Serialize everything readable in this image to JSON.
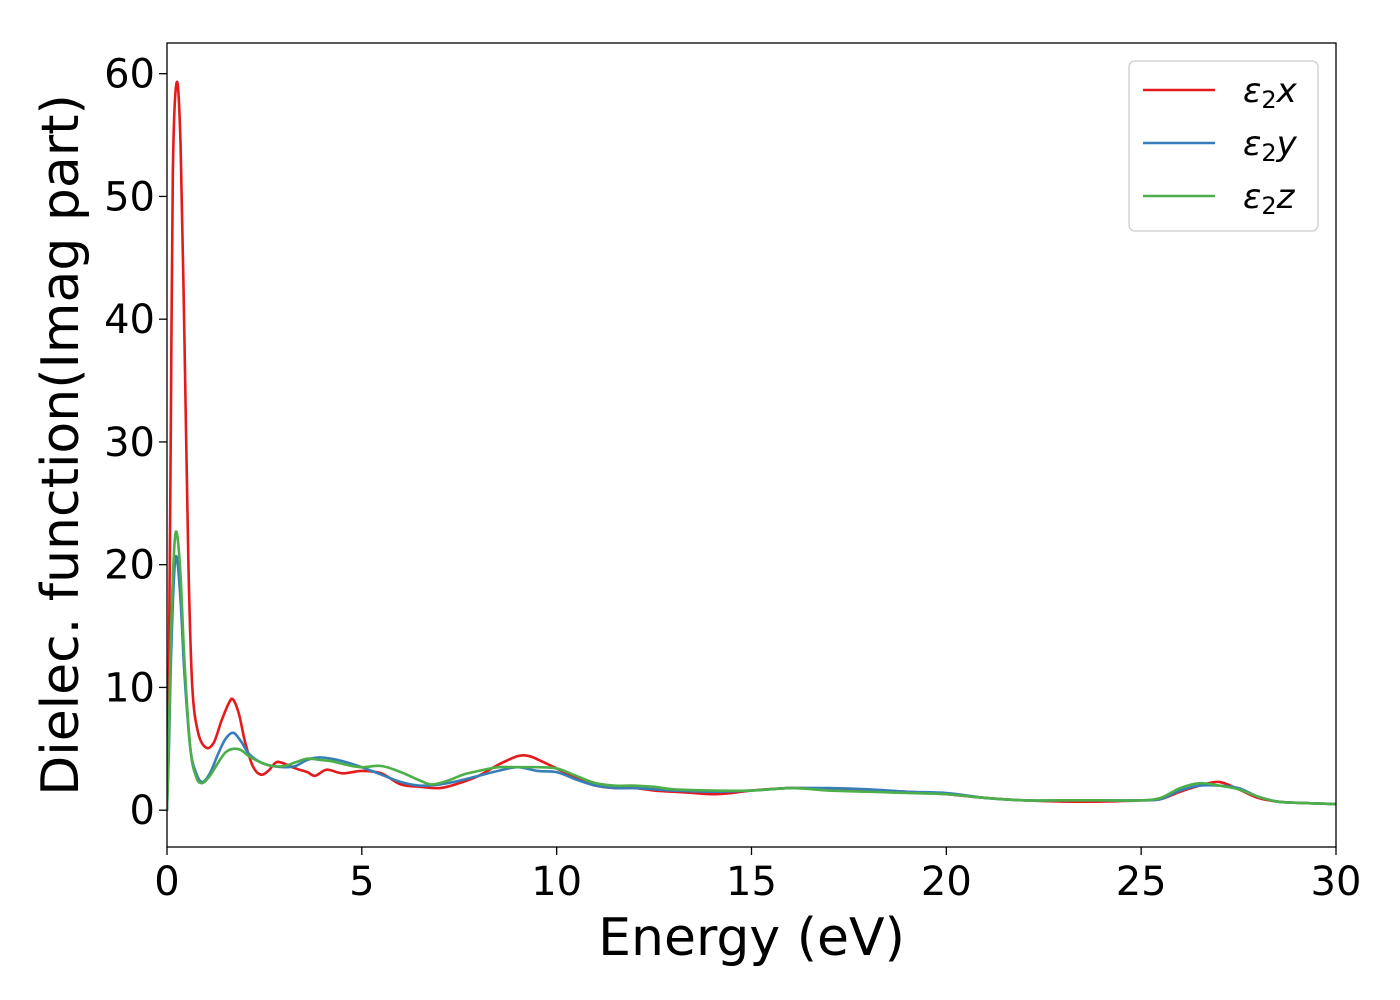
{
  "chart_data": {
    "type": "line",
    "title": "",
    "xlabel": "Energy (eV)",
    "ylabel": "Dielec. function(Imag part)",
    "xlim": [
      0,
      30
    ],
    "ylim": [
      -3,
      62.5
    ],
    "xticks": [
      0,
      5,
      10,
      15,
      20,
      25,
      30
    ],
    "yticks": [
      0,
      10,
      20,
      30,
      40,
      50,
      60
    ],
    "grid": false,
    "legend_position": "top-right",
    "series": [
      {
        "name": "ε2x",
        "legend_main": "ε",
        "legend_sub": "2",
        "legend_tail": "x",
        "color": "#e41a1c",
        "points": [
          [
            0,
            0
          ],
          [
            0.05,
            12
          ],
          [
            0.1,
            32
          ],
          [
            0.15,
            52
          ],
          [
            0.25,
            59.3
          ],
          [
            0.35,
            54
          ],
          [
            0.45,
            38
          ],
          [
            0.55,
            20
          ],
          [
            0.65,
            10
          ],
          [
            0.8,
            6.3
          ],
          [
            1.0,
            5.1
          ],
          [
            1.2,
            5.5
          ],
          [
            1.4,
            7.3
          ],
          [
            1.6,
            8.8
          ],
          [
            1.7,
            9.0
          ],
          [
            1.85,
            7.8
          ],
          [
            2.0,
            5.6
          ],
          [
            2.2,
            3.6
          ],
          [
            2.4,
            2.9
          ],
          [
            2.6,
            3.2
          ],
          [
            2.8,
            3.9
          ],
          [
            3.0,
            3.8
          ],
          [
            3.3,
            3.4
          ],
          [
            3.6,
            3.1
          ],
          [
            3.8,
            2.8
          ],
          [
            4.1,
            3.3
          ],
          [
            4.5,
            3.0
          ],
          [
            5.0,
            3.2
          ],
          [
            5.5,
            3.0
          ],
          [
            6.0,
            2.1
          ],
          [
            6.5,
            1.9
          ],
          [
            7.0,
            1.8
          ],
          [
            7.5,
            2.2
          ],
          [
            8.0,
            2.8
          ],
          [
            8.5,
            3.7
          ],
          [
            9.0,
            4.4
          ],
          [
            9.3,
            4.4
          ],
          [
            9.6,
            4.0
          ],
          [
            10.0,
            3.4
          ],
          [
            10.5,
            2.6
          ],
          [
            11.0,
            2.0
          ],
          [
            11.5,
            1.8
          ],
          [
            12.0,
            1.8
          ],
          [
            12.5,
            1.6
          ],
          [
            13.0,
            1.5
          ],
          [
            13.5,
            1.4
          ],
          [
            14.0,
            1.3
          ],
          [
            14.5,
            1.4
          ],
          [
            15.0,
            1.6
          ],
          [
            16.0,
            1.8
          ],
          [
            17.0,
            1.7
          ],
          [
            18.0,
            1.6
          ],
          [
            19.0,
            1.5
          ],
          [
            20.0,
            1.3
          ],
          [
            21.0,
            1.0
          ],
          [
            22.0,
            0.8
          ],
          [
            23.0,
            0.7
          ],
          [
            24.0,
            0.7
          ],
          [
            25.0,
            0.8
          ],
          [
            25.5,
            0.9
          ],
          [
            26.0,
            1.5
          ],
          [
            26.5,
            2.0
          ],
          [
            27.0,
            2.3
          ],
          [
            27.5,
            1.7
          ],
          [
            28.0,
            1.0
          ],
          [
            28.5,
            0.7
          ],
          [
            29.0,
            0.6
          ],
          [
            30.0,
            0.5
          ]
        ]
      },
      {
        "name": "ε2y",
        "legend_main": "ε",
        "legend_sub": "2",
        "legend_tail": "y",
        "color": "#377eb8",
        "points": [
          [
            0,
            0
          ],
          [
            0.05,
            5
          ],
          [
            0.1,
            12
          ],
          [
            0.18,
            19
          ],
          [
            0.25,
            20.6
          ],
          [
            0.35,
            17
          ],
          [
            0.45,
            11
          ],
          [
            0.6,
            5
          ],
          [
            0.75,
            3.0
          ],
          [
            0.9,
            2.3
          ],
          [
            1.1,
            3.0
          ],
          [
            1.3,
            4.5
          ],
          [
            1.5,
            5.8
          ],
          [
            1.7,
            6.3
          ],
          [
            1.9,
            5.6
          ],
          [
            2.1,
            4.6
          ],
          [
            2.4,
            3.9
          ],
          [
            2.7,
            3.6
          ],
          [
            3.0,
            3.5
          ],
          [
            3.3,
            3.6
          ],
          [
            3.6,
            4.1
          ],
          [
            3.9,
            4.3
          ],
          [
            4.2,
            4.2
          ],
          [
            4.5,
            4.0
          ],
          [
            5.0,
            3.5
          ],
          [
            5.5,
            2.9
          ],
          [
            6.0,
            2.3
          ],
          [
            6.5,
            2.0
          ],
          [
            7.0,
            2.1
          ],
          [
            7.5,
            2.4
          ],
          [
            8.0,
            2.8
          ],
          [
            8.5,
            3.2
          ],
          [
            9.0,
            3.5
          ],
          [
            9.5,
            3.2
          ],
          [
            10.0,
            3.1
          ],
          [
            10.5,
            2.5
          ],
          [
            11.0,
            2.0
          ],
          [
            11.5,
            1.8
          ],
          [
            12.0,
            1.8
          ],
          [
            12.5,
            1.7
          ],
          [
            13.0,
            1.6
          ],
          [
            14.0,
            1.5
          ],
          [
            15.0,
            1.6
          ],
          [
            16.0,
            1.8
          ],
          [
            17.0,
            1.8
          ],
          [
            18.0,
            1.7
          ],
          [
            19.0,
            1.5
          ],
          [
            20.0,
            1.4
          ],
          [
            21.0,
            1.0
          ],
          [
            22.0,
            0.8
          ],
          [
            23.0,
            0.8
          ],
          [
            24.0,
            0.8
          ],
          [
            25.0,
            0.8
          ],
          [
            25.5,
            0.9
          ],
          [
            26.0,
            1.6
          ],
          [
            26.5,
            2.0
          ],
          [
            27.0,
            2.0
          ],
          [
            27.5,
            1.8
          ],
          [
            28.0,
            1.1
          ],
          [
            28.5,
            0.7
          ],
          [
            29.0,
            0.6
          ],
          [
            30.0,
            0.5
          ]
        ]
      },
      {
        "name": "ε2z",
        "legend_main": "ε",
        "legend_sub": "2",
        "legend_tail": "z",
        "color": "#4daf4a",
        "points": [
          [
            0,
            0
          ],
          [
            0.05,
            6
          ],
          [
            0.1,
            14
          ],
          [
            0.18,
            21
          ],
          [
            0.25,
            22.6
          ],
          [
            0.35,
            19
          ],
          [
            0.45,
            12
          ],
          [
            0.6,
            5
          ],
          [
            0.75,
            2.7
          ],
          [
            0.9,
            2.2
          ],
          [
            1.1,
            2.8
          ],
          [
            1.3,
            3.8
          ],
          [
            1.5,
            4.7
          ],
          [
            1.7,
            5.0
          ],
          [
            1.9,
            4.9
          ],
          [
            2.1,
            4.4
          ],
          [
            2.4,
            3.9
          ],
          [
            2.7,
            3.6
          ],
          [
            3.0,
            3.6
          ],
          [
            3.3,
            3.9
          ],
          [
            3.6,
            4.2
          ],
          [
            3.9,
            4.1
          ],
          [
            4.2,
            4.0
          ],
          [
            4.6,
            3.7
          ],
          [
            5.0,
            3.5
          ],
          [
            5.5,
            3.6
          ],
          [
            6.0,
            3.1
          ],
          [
            6.5,
            2.4
          ],
          [
            6.8,
            2.1
          ],
          [
            7.2,
            2.4
          ],
          [
            7.6,
            2.9
          ],
          [
            8.0,
            3.2
          ],
          [
            8.5,
            3.5
          ],
          [
            9.0,
            3.5
          ],
          [
            9.5,
            3.5
          ],
          [
            10.0,
            3.4
          ],
          [
            10.5,
            2.8
          ],
          [
            11.0,
            2.2
          ],
          [
            11.5,
            2.0
          ],
          [
            12.0,
            2.0
          ],
          [
            12.5,
            1.9
          ],
          [
            13.0,
            1.7
          ],
          [
            14.0,
            1.6
          ],
          [
            15.0,
            1.6
          ],
          [
            16.0,
            1.8
          ],
          [
            17.0,
            1.6
          ],
          [
            18.0,
            1.5
          ],
          [
            19.0,
            1.4
          ],
          [
            20.0,
            1.3
          ],
          [
            21.0,
            1.0
          ],
          [
            22.0,
            0.8
          ],
          [
            23.0,
            0.8
          ],
          [
            24.0,
            0.8
          ],
          [
            25.0,
            0.8
          ],
          [
            25.5,
            1.0
          ],
          [
            26.0,
            1.8
          ],
          [
            26.5,
            2.2
          ],
          [
            27.0,
            2.0
          ],
          [
            27.5,
            1.7
          ],
          [
            28.0,
            1.1
          ],
          [
            28.5,
            0.7
          ],
          [
            29.0,
            0.6
          ],
          [
            30.0,
            0.5
          ]
        ]
      }
    ]
  }
}
